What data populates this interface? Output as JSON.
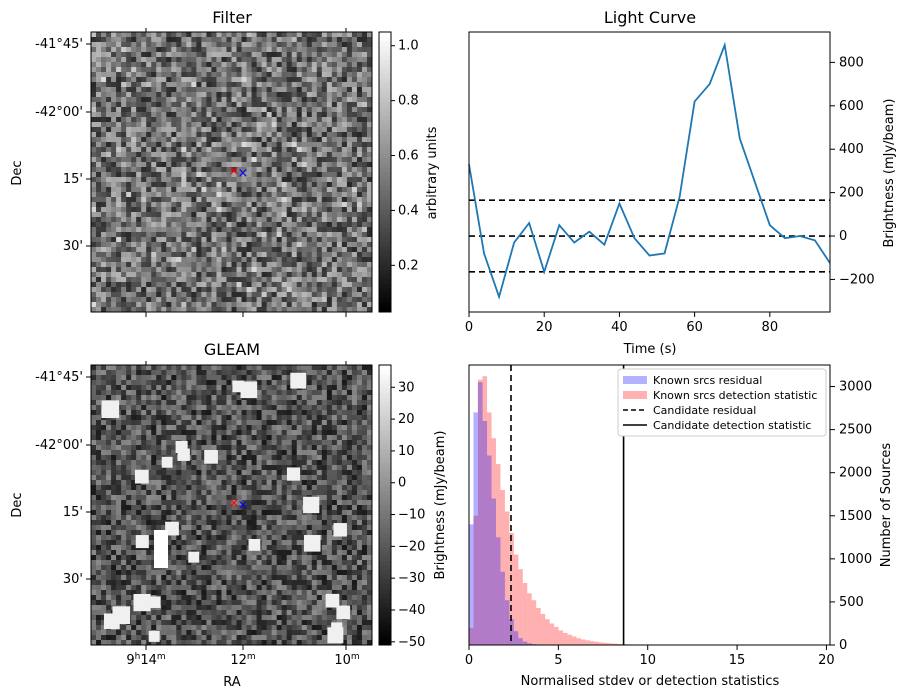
{
  "chart_data": [
    {
      "type": "heatmap",
      "panel": "filter",
      "title": "Filter",
      "ylabel": "Dec",
      "yticks": [
        "-41°45'",
        "-42°00'",
        "15'",
        "30'"
      ],
      "colorbar": {
        "label": "arbitrary units",
        "range": [
          0.03,
          1.05
        ],
        "ticks": [
          "0.2",
          "0.4",
          "0.6",
          "0.8",
          "1.0"
        ],
        "tick_values": [
          0.2,
          0.4,
          0.6,
          0.8,
          1.0
        ]
      },
      "markers": {
        "red": "×",
        "blue": "×"
      }
    },
    {
      "type": "line",
      "panel": "light-curve",
      "title": "Light Curve",
      "xlabel": "Time (s)",
      "ylabel": "Brightness (mJy/beam)",
      "xlim": [
        0,
        96
      ],
      "ylim": [
        -350,
        940
      ],
      "xticks": [
        0,
        20,
        40,
        60,
        80
      ],
      "yticks": [
        -200,
        0,
        200,
        400,
        600,
        800
      ],
      "x": [
        0,
        4,
        8,
        12,
        16,
        20,
        24,
        28,
        32,
        36,
        40,
        44,
        48,
        52,
        56,
        60,
        64,
        68,
        72,
        76,
        80,
        84,
        88,
        92,
        96
      ],
      "y": [
        330,
        -80,
        -280,
        -30,
        60,
        -165,
        50,
        -30,
        20,
        -40,
        150,
        -10,
        -90,
        -80,
        180,
        620,
        700,
        880,
        450,
        250,
        50,
        -10,
        0,
        -20,
        -125
      ],
      "hlines": [
        165,
        0,
        -165
      ]
    },
    {
      "type": "heatmap",
      "panel": "gleam",
      "title": "GLEAM",
      "ylabel": "Dec",
      "xlabel": "RA",
      "yticks": [
        "-41°45'",
        "-42°00'",
        "15'",
        "30'"
      ],
      "xticks": [
        {
          "base": "9",
          "sup1": "h",
          "mid": "14",
          "sup2": "m"
        },
        {
          "base": "12",
          "sup2": "m"
        },
        {
          "base": "10",
          "sup2": "m"
        }
      ],
      "colorbar": {
        "label": "Brightness (mJy/beam)",
        "range": [
          -51,
          37
        ],
        "ticks": [
          "−50",
          "−40",
          "−30",
          "−20",
          "−10",
          "0",
          "10",
          "20",
          "30"
        ],
        "tick_values": [
          -50,
          -40,
          -30,
          -20,
          -10,
          0,
          10,
          20,
          30
        ]
      }
    },
    {
      "type": "bar",
      "panel": "histogram",
      "xlabel": "Normalised stdev or detection statistics",
      "ylabel": "Number of Sources",
      "xlim": [
        0,
        20.2
      ],
      "ylim": [
        0,
        3250
      ],
      "xticks": [
        0,
        5,
        10,
        15,
        20
      ],
      "yticks": [
        0,
        500,
        1000,
        1500,
        2000,
        2500,
        3000
      ],
      "bin_width": 0.25,
      "bin_start": 0,
      "series": [
        {
          "name": "Known srcs residual",
          "color": "#0000ff",
          "values": [
            1400,
            2700,
            3050,
            2600,
            2200,
            1700,
            1250,
            850,
            520,
            300,
            160,
            80,
            40,
            20,
            10,
            5,
            2,
            0,
            0,
            0
          ]
        },
        {
          "name": "Known srcs detection statistic",
          "color": "#ff0000",
          "values": [
            200,
            1500,
            3080,
            3120,
            2700,
            2400,
            2100,
            1800,
            1550,
            1300,
            1050,
            880,
            720,
            600,
            520,
            430,
            360,
            300,
            250,
            210,
            170,
            140,
            120,
            100,
            80,
            65,
            55,
            45,
            38,
            30,
            25,
            20,
            16,
            13,
            10,
            8,
            6,
            5,
            4,
            3,
            3,
            2,
            2,
            2,
            1,
            1,
            1,
            1,
            1,
            1
          ]
        }
      ],
      "vlines": [
        {
          "name": "Candidate residual",
          "x": 2.35,
          "style": "dashed"
        },
        {
          "name": "Candidate detection statistic",
          "x": 8.65,
          "style": "solid"
        }
      ],
      "legend": "top-right"
    }
  ]
}
